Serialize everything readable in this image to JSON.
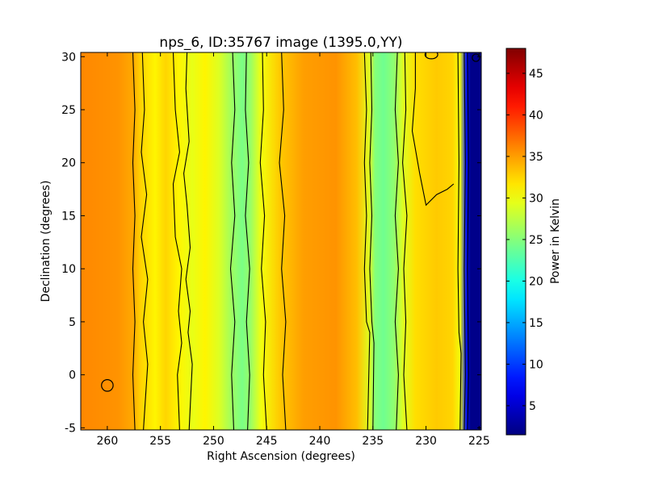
{
  "chart_data": {
    "type": "heatmap",
    "title": "nps_6, ID:35767 image (1395.0,YY)",
    "xlabel": "Right Ascension (degrees)",
    "ylabel": "Declination (degrees)",
    "colorbar_label": "Power in Kelvin",
    "xlim": [
      262.5,
      224.8
    ],
    "ylim": [
      -5.2,
      30.4
    ],
    "xticks": [
      260,
      255,
      250,
      245,
      240,
      235,
      230,
      225
    ],
    "yticks": [
      -5,
      0,
      5,
      10,
      15,
      20,
      25,
      30
    ],
    "colorbar_range": [
      1.5,
      48
    ],
    "colorbar_ticks": [
      5,
      10,
      15,
      20,
      25,
      30,
      35,
      40,
      45
    ],
    "colormap": "jet",
    "contour_color": "#000000",
    "ra_profile": [
      {
        "ra": 262.5,
        "kelvin": 36.0
      },
      {
        "ra": 259.0,
        "kelvin": 35.5
      },
      {
        "ra": 257.6,
        "kelvin": 34.5
      },
      {
        "ra": 256.8,
        "kelvin": 32.5
      },
      {
        "ra": 255.5,
        "kelvin": 31.0
      },
      {
        "ra": 254.5,
        "kelvin": 32.5
      },
      {
        "ra": 253.3,
        "kelvin": 31.0
      },
      {
        "ra": 252.0,
        "kelvin": 29.5
      },
      {
        "ra": 250.8,
        "kelvin": 31.0
      },
      {
        "ra": 249.5,
        "kelvin": 29.0
      },
      {
        "ra": 248.2,
        "kelvin": 26.0
      },
      {
        "ra": 247.3,
        "kelvin": 24.5
      },
      {
        "ra": 246.5,
        "kelvin": 26.0
      },
      {
        "ra": 245.5,
        "kelvin": 30.0
      },
      {
        "ra": 243.8,
        "kelvin": 33.0
      },
      {
        "ra": 241.5,
        "kelvin": 35.0
      },
      {
        "ra": 238.5,
        "kelvin": 35.5
      },
      {
        "ra": 236.5,
        "kelvin": 33.5
      },
      {
        "ra": 235.3,
        "kelvin": 29.0
      },
      {
        "ra": 234.8,
        "kelvin": 25.0
      },
      {
        "ra": 234.0,
        "kelvin": 24.0
      },
      {
        "ra": 233.0,
        "kelvin": 25.5
      },
      {
        "ra": 232.2,
        "kelvin": 29.0
      },
      {
        "ra": 231.0,
        "kelvin": 32.0
      },
      {
        "ra": 229.0,
        "kelvin": 33.0
      },
      {
        "ra": 227.5,
        "kelvin": 32.5
      },
      {
        "ra": 226.8,
        "kelvin": 30.0
      },
      {
        "ra": 226.2,
        "kelvin": 8.0
      },
      {
        "ra": 225.8,
        "kelvin": 2.0
      },
      {
        "ra": 224.8,
        "kelvin": 2.0
      }
    ],
    "contour_lines": [
      {
        "points": [
          [
            257.6,
            30.4
          ],
          [
            257.4,
            25
          ],
          [
            257.6,
            20
          ],
          [
            257.4,
            15
          ],
          [
            257.6,
            10
          ],
          [
            257.4,
            5
          ],
          [
            257.6,
            0
          ],
          [
            257.4,
            -5.2
          ]
        ]
      },
      {
        "points": [
          [
            256.7,
            30.4
          ],
          [
            256.5,
            25
          ],
          [
            256.8,
            21
          ],
          [
            256.3,
            17
          ],
          [
            256.8,
            13
          ],
          [
            256.2,
            9
          ],
          [
            256.6,
            5
          ],
          [
            256.2,
            1
          ],
          [
            256.6,
            -5.2
          ]
        ]
      },
      {
        "points": [
          [
            253.8,
            30.4
          ],
          [
            253.6,
            25
          ],
          [
            253.2,
            21
          ],
          [
            253.8,
            18
          ],
          [
            253.6,
            13
          ],
          [
            253.0,
            10
          ],
          [
            253.3,
            6
          ],
          [
            253.0,
            3
          ],
          [
            253.4,
            0
          ],
          [
            253.2,
            -5.2
          ]
        ]
      },
      {
        "points": [
          [
            252.5,
            30.4
          ],
          [
            252.6,
            27
          ],
          [
            252.3,
            22
          ],
          [
            252.8,
            19
          ],
          [
            252.5,
            16
          ],
          [
            252.2,
            12
          ],
          [
            252.6,
            9
          ],
          [
            252.2,
            6
          ],
          [
            252.4,
            4
          ],
          [
            252.0,
            1
          ],
          [
            252.3,
            -5.2
          ]
        ]
      },
      {
        "points": [
          [
            248.2,
            30.4
          ],
          [
            248.0,
            25
          ],
          [
            248.3,
            20
          ],
          [
            248.0,
            15
          ],
          [
            248.4,
            10
          ],
          [
            248.0,
            5
          ],
          [
            248.3,
            0
          ],
          [
            248.1,
            -5.2
          ]
        ]
      },
      {
        "points": [
          [
            246.9,
            30.4
          ],
          [
            247.0,
            25
          ],
          [
            246.7,
            20
          ],
          [
            247.0,
            15
          ],
          [
            246.6,
            10
          ],
          [
            246.9,
            5
          ],
          [
            246.6,
            0
          ],
          [
            246.8,
            -5.2
          ]
        ]
      },
      {
        "points": [
          [
            245.4,
            30.4
          ],
          [
            245.3,
            25
          ],
          [
            245.6,
            20
          ],
          [
            245.2,
            15
          ],
          [
            245.5,
            10
          ],
          [
            245.1,
            5
          ],
          [
            245.3,
            0
          ],
          [
            245.0,
            -5.2
          ]
        ]
      },
      {
        "points": [
          [
            243.6,
            30.4
          ],
          [
            243.4,
            25
          ],
          [
            243.8,
            20
          ],
          [
            243.3,
            15
          ],
          [
            243.6,
            10
          ],
          [
            243.2,
            5
          ],
          [
            243.5,
            0
          ],
          [
            243.2,
            -5.2
          ]
        ]
      },
      {
        "points": [
          [
            235.8,
            30.4
          ],
          [
            235.6,
            25
          ],
          [
            235.8,
            20
          ],
          [
            235.6,
            15
          ],
          [
            235.8,
            10
          ],
          [
            235.6,
            5
          ],
          [
            235.3,
            4
          ],
          [
            235.5,
            -5.2
          ]
        ]
      },
      {
        "points": [
          [
            235.2,
            30.4
          ],
          [
            235.1,
            25
          ],
          [
            235.3,
            20
          ],
          [
            235.1,
            15
          ],
          [
            235.3,
            10
          ],
          [
            235.1,
            5
          ],
          [
            234.9,
            3
          ],
          [
            235.0,
            -5.2
          ]
        ]
      },
      {
        "points": [
          [
            232.7,
            30.4
          ],
          [
            232.9,
            25
          ],
          [
            232.6,
            20
          ],
          [
            232.9,
            15
          ],
          [
            232.6,
            10
          ],
          [
            232.9,
            5
          ],
          [
            232.6,
            0
          ],
          [
            232.8,
            -5.2
          ]
        ]
      },
      {
        "points": [
          [
            232.0,
            30.4
          ],
          [
            231.9,
            25
          ],
          [
            232.2,
            20
          ],
          [
            231.8,
            15
          ],
          [
            232.1,
            10
          ],
          [
            231.9,
            5
          ],
          [
            232.1,
            0
          ],
          [
            231.8,
            -5.2
          ]
        ]
      },
      {
        "points": [
          [
            231.0,
            30.4
          ],
          [
            231.0,
            27
          ],
          [
            231.3,
            23
          ],
          [
            230.6,
            19
          ],
          [
            230.0,
            16
          ],
          [
            229.0,
            17
          ],
          [
            228.0,
            17.5
          ],
          [
            227.4,
            18
          ]
        ]
      },
      {
        "points": [
          [
            227.0,
            30.4
          ],
          [
            226.9,
            20
          ],
          [
            227.0,
            10
          ],
          [
            226.9,
            4
          ],
          [
            226.7,
            2
          ],
          [
            226.8,
            -5.2
          ]
        ]
      },
      {
        "points": [
          [
            226.4,
            30.4
          ],
          [
            226.3,
            20
          ],
          [
            226.4,
            10
          ],
          [
            226.3,
            0
          ],
          [
            226.4,
            -5.2
          ]
        ]
      },
      {
        "points": [
          [
            226.1,
            30.4
          ],
          [
            226.0,
            20
          ],
          [
            226.1,
            10
          ],
          [
            226.0,
            0
          ],
          [
            226.1,
            -5.2
          ]
        ]
      }
    ],
    "contour_loops": [
      {
        "ra": 260.0,
        "dec": -1.0,
        "r_ra": 0.55,
        "r_dec": 0.55
      },
      {
        "ra": 229.5,
        "dec": 30.2,
        "r_ra": 0.6,
        "r_dec": 0.4
      },
      {
        "ra": 225.3,
        "dec": 29.9,
        "r_ra": 0.35,
        "r_dec": 0.35
      }
    ]
  }
}
